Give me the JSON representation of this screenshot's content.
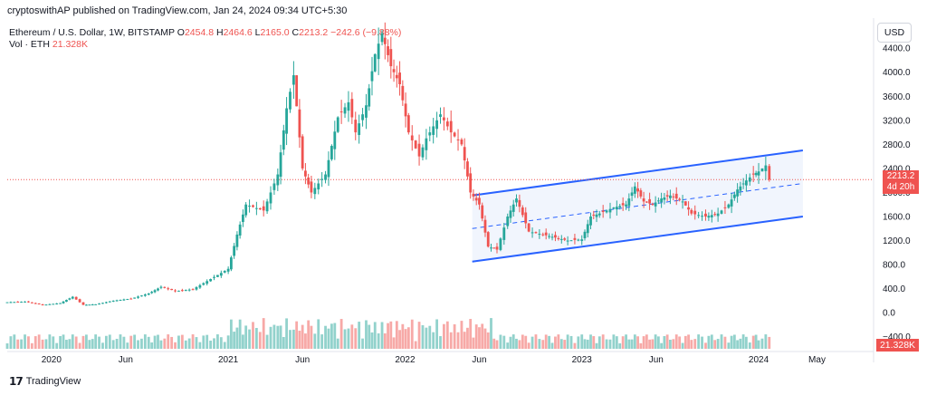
{
  "header": {
    "published": "cryptoswithAP published on TradingView.com, Jan 24, 2024 09:34 UTC+5:30"
  },
  "legend": {
    "symbol": "Ethereum / U.S. Dollar, 1W, BITSTAMP",
    "ohlc_o_label": "O",
    "ohlc_o": "2454.8",
    "ohlc_h_label": "H",
    "ohlc_h": "2464.6",
    "ohlc_l_label": "L",
    "ohlc_l": "2165.0",
    "ohlc_c_label": "C",
    "ohlc_c": "2213.2",
    "change": "−242.6 (−9.88%)",
    "vol_label": "Vol · ETH",
    "vol_value": "21.328K"
  },
  "currency_button": "USD",
  "price_label": {
    "price": "2213.2",
    "countdown": "4d 20h"
  },
  "volume_label": "21.328K",
  "footer": {
    "brand": "TradingView"
  },
  "colors": {
    "up": "#26a69a",
    "down": "#ef5350",
    "channel": "#2962ff",
    "channel_fill": "#e8eefc"
  },
  "chart_data": {
    "type": "candlestick",
    "title": "Ethereum / U.S. Dollar, 1W, BITSTAMP",
    "ylim": [
      -600,
      4900
    ],
    "y_ticks": [
      "4400.0",
      "4000.0",
      "3600.0",
      "3200.0",
      "2800.0",
      "2400.0",
      "2000.0",
      "1600.0",
      "1200.0",
      "800.0",
      "400.0",
      "0.0",
      "−400.0"
    ],
    "y_tick_values": [
      4400,
      4000,
      3600,
      3200,
      2800,
      2400,
      2000,
      1600,
      1200,
      800,
      400,
      0,
      -400
    ],
    "x_ticks": [
      "2020",
      "Jun",
      "2021",
      "Jun",
      "2022",
      "Jun",
      "2023",
      "Jun",
      "2024",
      "May"
    ],
    "x_tick_values": [
      2020.0,
      2020.42,
      2021.0,
      2021.42,
      2022.0,
      2022.42,
      2023.0,
      2023.42,
      2024.0,
      2024.33
    ],
    "x_range": [
      2019.75,
      2024.65
    ],
    "last_price": 2213.2,
    "series_close": [
      [
        2019.75,
        175
      ],
      [
        2019.85,
        185
      ],
      [
        2019.95,
        130
      ],
      [
        2020.05,
        160
      ],
      [
        2020.12,
        265
      ],
      [
        2020.18,
        130
      ],
      [
        2020.25,
        140
      ],
      [
        2020.35,
        200
      ],
      [
        2020.45,
        235
      ],
      [
        2020.55,
        320
      ],
      [
        2020.62,
        430
      ],
      [
        2020.7,
        360
      ],
      [
        2020.8,
        390
      ],
      [
        2020.9,
        560
      ],
      [
        2021.0,
        730
      ],
      [
        2021.05,
        1300
      ],
      [
        2021.1,
        1800
      ],
      [
        2021.2,
        1700
      ],
      [
        2021.28,
        2300
      ],
      [
        2021.33,
        3400
      ],
      [
        2021.37,
        3950
      ],
      [
        2021.42,
        2400
      ],
      [
        2021.47,
        2000
      ],
      [
        2021.55,
        2300
      ],
      [
        2021.62,
        3250
      ],
      [
        2021.68,
        3500
      ],
      [
        2021.72,
        3000
      ],
      [
        2021.78,
        3450
      ],
      [
        2021.83,
        4300
      ],
      [
        2021.87,
        4650
      ],
      [
        2021.92,
        4100
      ],
      [
        2021.97,
        3800
      ],
      [
        2022.02,
        3000
      ],
      [
        2022.08,
        2600
      ],
      [
        2022.12,
        2900
      ],
      [
        2022.2,
        3300
      ],
      [
        2022.26,
        3000
      ],
      [
        2022.32,
        2800
      ],
      [
        2022.37,
        2000
      ],
      [
        2022.42,
        1800
      ],
      [
        2022.47,
        1100
      ],
      [
        2022.52,
        1050
      ],
      [
        2022.58,
        1600
      ],
      [
        2022.63,
        1900
      ],
      [
        2022.7,
        1350
      ],
      [
        2022.78,
        1300
      ],
      [
        2022.85,
        1250
      ],
      [
        2022.92,
        1200
      ],
      [
        2023.0,
        1220
      ],
      [
        2023.05,
        1600
      ],
      [
        2023.1,
        1650
      ],
      [
        2023.18,
        1750
      ],
      [
        2023.25,
        1800
      ],
      [
        2023.3,
        2100
      ],
      [
        2023.35,
        1850
      ],
      [
        2023.4,
        1800
      ],
      [
        2023.45,
        1900
      ],
      [
        2023.5,
        1950
      ],
      [
        2023.57,
        1850
      ],
      [
        2023.62,
        1650
      ],
      [
        2023.7,
        1600
      ],
      [
        2023.77,
        1650
      ],
      [
        2023.83,
        1800
      ],
      [
        2023.88,
        2050
      ],
      [
        2023.93,
        2200
      ],
      [
        2023.97,
        2300
      ],
      [
        2024.0,
        2350
      ],
      [
        2024.04,
        2450
      ],
      [
        2024.06,
        2213
      ]
    ],
    "channel": {
      "upper": [
        [
          2022.38,
          1950
        ],
        [
          2024.25,
          2700
        ]
      ],
      "lower": [
        [
          2022.38,
          850
        ],
        [
          2024.25,
          1600
        ]
      ]
    }
  }
}
